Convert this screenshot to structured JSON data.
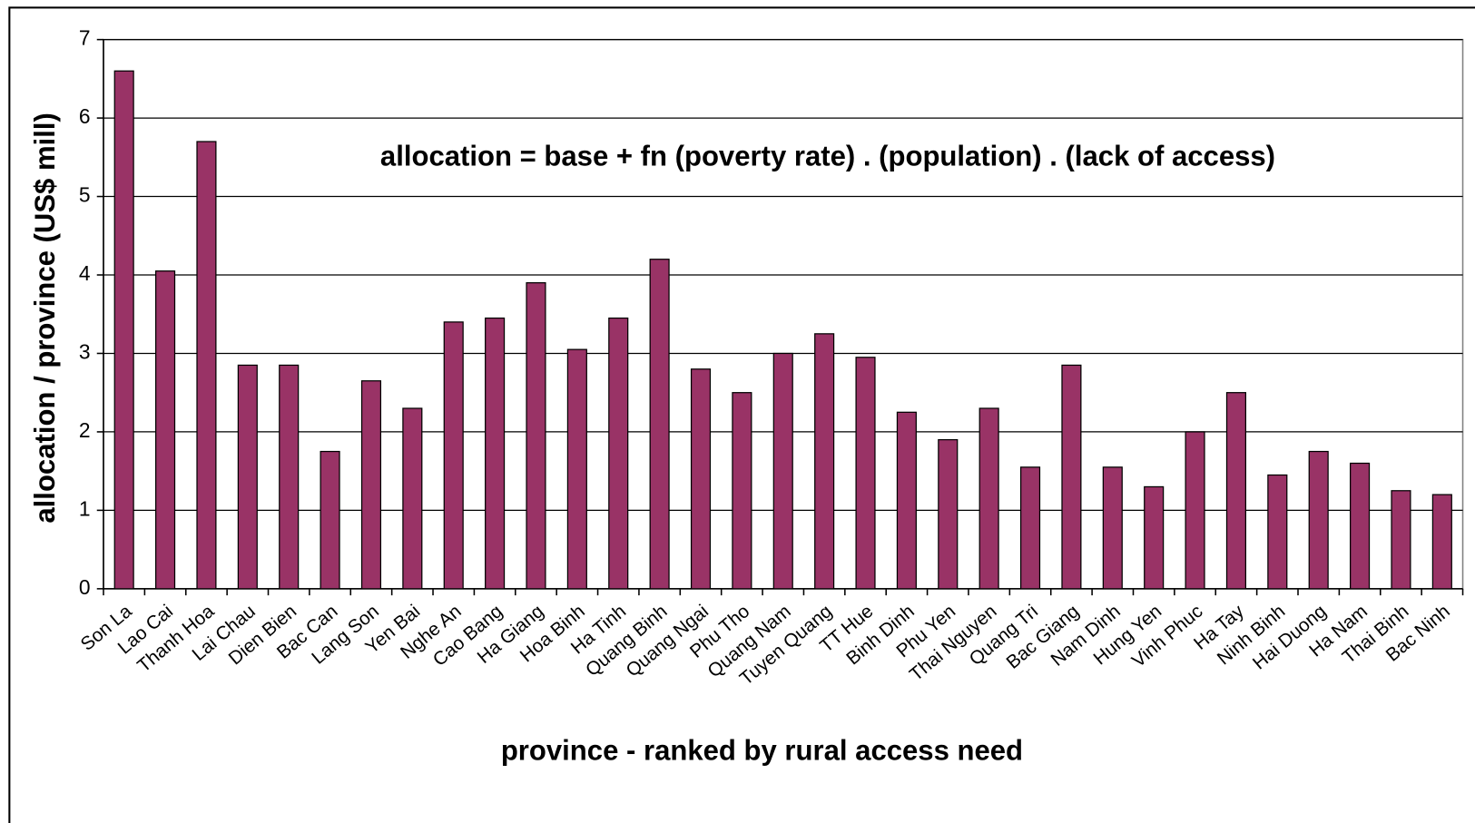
{
  "chart_data": {
    "type": "bar",
    "annotation": "allocation = base + fn (poverty rate) . (population) . (lack of access)",
    "x_label": "province - ranked by rural access need",
    "y_label": "allocation / province (US$ mill)",
    "categories": [
      "Son La",
      "Lao Cai",
      "Thanh Hoa",
      "Lai Chau",
      "Dien Bien",
      "Bac Can",
      "Lang Son",
      "Yen Bai",
      "Nghe An",
      "Cao Bang",
      "Ha Giang",
      "Hoa Binh",
      "Ha Tinh",
      "Quang Binh",
      "Quang Ngai",
      "Phu Tho",
      "Quang Nam",
      "Tuyen Quang",
      "TT Hue",
      "Binh Dinh",
      "Phu Yen",
      "Thai Nguyen",
      "Quang Tri",
      "Bac Giang",
      "Nam Dinh",
      "Hung Yen",
      "Vinh Phuc",
      "Ha Tay",
      "Ninh Binh",
      "Hai Duong",
      "Ha Nam",
      "Thai Binh",
      "Bac Ninh"
    ],
    "values": [
      6.6,
      4.05,
      5.7,
      2.85,
      2.85,
      1.75,
      2.65,
      2.3,
      3.4,
      3.45,
      3.9,
      3.05,
      3.45,
      4.2,
      2.8,
      2.5,
      3.0,
      3.25,
      2.95,
      2.25,
      1.9,
      2.3,
      1.55,
      2.85,
      1.55,
      1.3,
      2.0,
      2.5,
      1.45,
      1.75,
      1.6,
      1.25,
      1.2
    ],
    "color": "#993366",
    "ylim": [
      0,
      7
    ],
    "yticks": [
      0,
      1,
      2,
      3,
      4,
      5,
      6,
      7
    ],
    "grid": true
  }
}
